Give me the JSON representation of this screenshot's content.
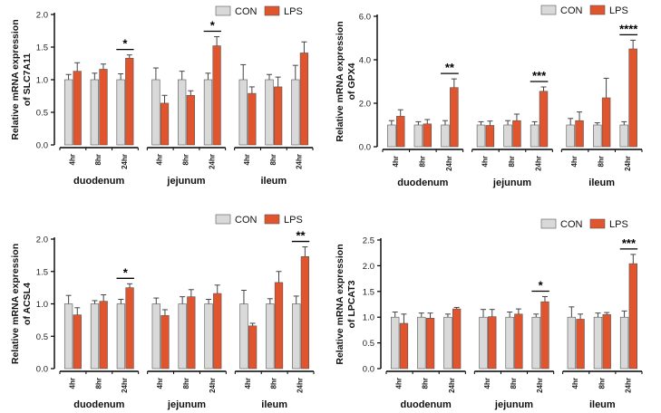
{
  "colors": {
    "con": "#d9d9d9",
    "lps": "#e0552e",
    "axis": "#000000"
  },
  "chart_data": [
    {
      "type": "bar",
      "ylabel_lines": [
        "Relative mRNA expression",
        "of SLC7A11"
      ],
      "ylim": [
        0,
        2.0
      ],
      "yticks": [
        "0.0",
        "0.5",
        "1.0",
        "1.5",
        "2.0"
      ],
      "ytick_values": [
        0,
        0.5,
        1.0,
        1.5,
        2.0
      ],
      "groups": [
        "duodenum",
        "jejunum",
        "ileum"
      ],
      "timepoints": [
        "4hr",
        "8hr",
        "24hr"
      ],
      "legend": [
        "CON",
        "LPS"
      ],
      "series": [
        {
          "name": "CON",
          "values": [
            1.0,
            1.0,
            1.0,
            1.0,
            1.0,
            1.0,
            1.0,
            1.0,
            1.0
          ],
          "errors": [
            0.08,
            0.1,
            0.09,
            0.18,
            0.13,
            0.1,
            0.23,
            0.08,
            0.22
          ]
        },
        {
          "name": "LPS",
          "values": [
            1.13,
            1.16,
            1.33,
            0.64,
            0.76,
            1.52,
            0.79,
            0.89,
            1.41
          ],
          "errors": [
            0.13,
            0.08,
            0.05,
            0.12,
            0.07,
            0.14,
            0.1,
            0.15,
            0.17
          ]
        }
      ],
      "significance": [
        {
          "index": 2,
          "label": "*"
        },
        {
          "index": 5,
          "label": "*"
        }
      ]
    },
    {
      "type": "bar",
      "ylabel_lines": [
        "Relative mRNA expression",
        "of GPX4"
      ],
      "ylim": [
        0,
        6.0
      ],
      "yticks": [
        "0.0",
        "2.0",
        "4.0",
        "6.0"
      ],
      "ytick_values": [
        0,
        2.0,
        4.0,
        6.0
      ],
      "groups": [
        "duodenum",
        "jejunum",
        "ileum"
      ],
      "timepoints": [
        "4hr",
        "8hr",
        "24hr"
      ],
      "legend": [
        "CON",
        "LPS"
      ],
      "series": [
        {
          "name": "CON",
          "values": [
            1.0,
            1.0,
            1.0,
            1.0,
            1.0,
            1.0,
            1.0,
            1.0,
            1.0
          ],
          "errors": [
            0.2,
            0.15,
            0.2,
            0.15,
            0.2,
            0.15,
            0.3,
            0.1,
            0.15
          ]
        },
        {
          "name": "LPS",
          "values": [
            1.4,
            1.05,
            2.72,
            0.98,
            1.2,
            2.55,
            1.2,
            2.25,
            4.5
          ],
          "errors": [
            0.3,
            0.2,
            0.4,
            0.2,
            0.3,
            0.2,
            0.4,
            0.9,
            0.4
          ]
        }
      ],
      "significance": [
        {
          "index": 2,
          "label": "**"
        },
        {
          "index": 5,
          "label": "***"
        },
        {
          "index": 8,
          "label": "****"
        }
      ]
    },
    {
      "type": "bar",
      "ylabel_lines": [
        "Relative mRNA expression",
        "of ACSL4"
      ],
      "ylim": [
        0,
        2.0
      ],
      "yticks": [
        "0.0",
        "0.5",
        "1.0",
        "1.5",
        "2.0"
      ],
      "ytick_values": [
        0,
        0.5,
        1.0,
        1.5,
        2.0
      ],
      "groups": [
        "duodenum",
        "jejunum",
        "ileum"
      ],
      "timepoints": [
        "4hr",
        "8hr",
        "24hr"
      ],
      "legend": [
        "CON",
        "LPS"
      ],
      "series": [
        {
          "name": "CON",
          "values": [
            1.0,
            1.0,
            1.0,
            1.0,
            1.0,
            1.0,
            1.0,
            1.0,
            1.0
          ],
          "errors": [
            0.13,
            0.05,
            0.07,
            0.09,
            0.11,
            0.07,
            0.21,
            0.08,
            0.12
          ]
        },
        {
          "name": "LPS",
          "values": [
            0.83,
            1.04,
            1.25,
            0.82,
            1.11,
            1.16,
            0.66,
            1.33,
            1.73
          ],
          "errors": [
            0.11,
            0.1,
            0.06,
            0.09,
            0.11,
            0.13,
            0.04,
            0.17,
            0.15
          ]
        }
      ],
      "significance": [
        {
          "index": 2,
          "label": "*"
        },
        {
          "index": 8,
          "label": "**"
        }
      ]
    },
    {
      "type": "bar",
      "ylabel_lines": [
        "Relative mRNA expression",
        "of LPCAT3"
      ],
      "ylim": [
        0,
        2.5
      ],
      "yticks": [
        "0.0",
        "0.5",
        "1.0",
        "1.5",
        "2.0",
        "2.5"
      ],
      "ytick_values": [
        0,
        0.5,
        1.0,
        1.5,
        2.0,
        2.5
      ],
      "groups": [
        "duodenum",
        "jejunum",
        "ileum"
      ],
      "timepoints": [
        "4hr",
        "8hr",
        "24hr"
      ],
      "legend": [
        "CON",
        "LPS"
      ],
      "series": [
        {
          "name": "CON",
          "values": [
            1.0,
            1.0,
            1.0,
            1.0,
            1.0,
            1.0,
            1.0,
            1.0,
            1.0
          ],
          "errors": [
            0.1,
            0.08,
            0.06,
            0.15,
            0.1,
            0.06,
            0.2,
            0.08,
            0.12
          ]
        },
        {
          "name": "LPS",
          "values": [
            0.88,
            0.98,
            1.16,
            1.01,
            1.06,
            1.3,
            0.96,
            1.05,
            2.04
          ],
          "errors": [
            0.18,
            0.1,
            0.03,
            0.14,
            0.1,
            0.1,
            0.1,
            0.04,
            0.18
          ]
        }
      ],
      "significance": [
        {
          "index": 5,
          "label": "*"
        },
        {
          "index": 8,
          "label": "***"
        }
      ]
    }
  ]
}
